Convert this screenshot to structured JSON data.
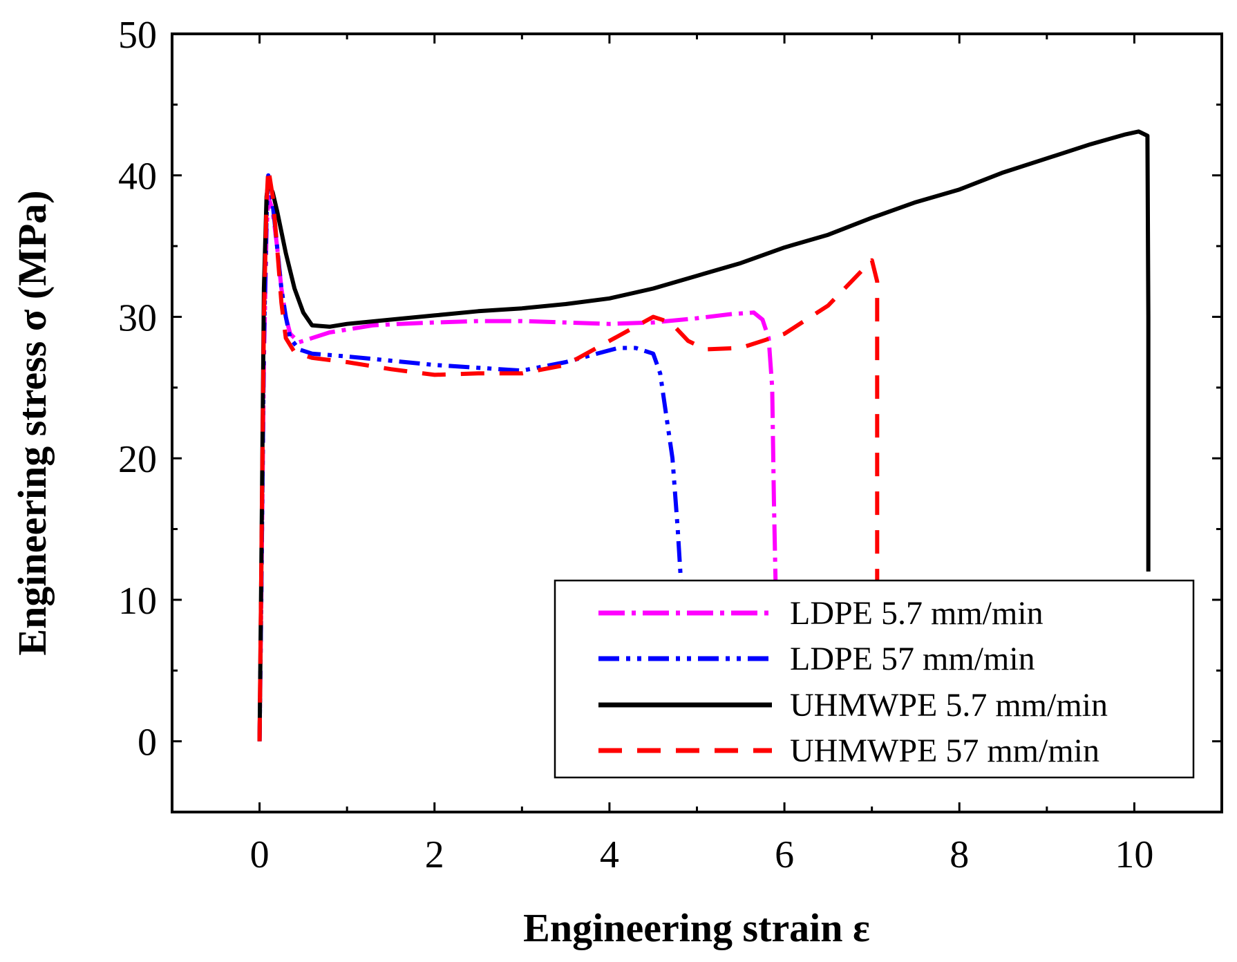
{
  "chart_data": {
    "type": "line",
    "title": "",
    "xlabel": "Engineering strain ε",
    "ylabel": "Engineering stress σ (MPa)",
    "xlim": [
      -1,
      11
    ],
    "ylim": [
      -5,
      50
    ],
    "x_ticks": [
      0,
      2,
      4,
      6,
      8,
      10
    ],
    "y_ticks": [
      0,
      10,
      20,
      30,
      40,
      50
    ],
    "x_tick_labels": [
      "0",
      "2",
      "4",
      "6",
      "8",
      "10"
    ],
    "y_tick_labels": [
      "0",
      "10",
      "20",
      "30",
      "40",
      "50"
    ],
    "grid": false,
    "legend_position": "bottom-right",
    "series": [
      {
        "name": "LDPE 5.7 mm/min",
        "color": "#ff00ff",
        "dash": "dash-dot",
        "points": [
          [
            0,
            0
          ],
          [
            0.02,
            10
          ],
          [
            0.05,
            27
          ],
          [
            0.08,
            36
          ],
          [
            0.1,
            38.5
          ],
          [
            0.15,
            37.5
          ],
          [
            0.2,
            35
          ],
          [
            0.25,
            32
          ],
          [
            0.3,
            30
          ],
          [
            0.35,
            28.8
          ],
          [
            0.45,
            28.2
          ],
          [
            0.6,
            28.5
          ],
          [
            0.8,
            28.9
          ],
          [
            1,
            29.1
          ],
          [
            1.3,
            29.4
          ],
          [
            1.6,
            29.5
          ],
          [
            2,
            29.6
          ],
          [
            2.5,
            29.7
          ],
          [
            3,
            29.7
          ],
          [
            3.5,
            29.6
          ],
          [
            4,
            29.5
          ],
          [
            4.5,
            29.6
          ],
          [
            5,
            29.9
          ],
          [
            5.4,
            30.2
          ],
          [
            5.65,
            30.3
          ],
          [
            5.75,
            29.8
          ],
          [
            5.82,
            28.5
          ],
          [
            5.86,
            25
          ],
          [
            5.88,
            17
          ],
          [
            5.9,
            11
          ]
        ]
      },
      {
        "name": "LDPE 57 mm/min",
        "color": "#0000ff",
        "dash": "dash-dot-dot",
        "points": [
          [
            0,
            0
          ],
          [
            0.02,
            10
          ],
          [
            0.05,
            28
          ],
          [
            0.08,
            37
          ],
          [
            0.1,
            40
          ],
          [
            0.15,
            38
          ],
          [
            0.2,
            35
          ],
          [
            0.25,
            32
          ],
          [
            0.3,
            30
          ],
          [
            0.35,
            28.5
          ],
          [
            0.45,
            27.7
          ],
          [
            0.6,
            27.4
          ],
          [
            1,
            27.2
          ],
          [
            1.5,
            26.9
          ],
          [
            2,
            26.6
          ],
          [
            2.5,
            26.4
          ],
          [
            3,
            26.2
          ],
          [
            3.5,
            26.8
          ],
          [
            3.8,
            27.3
          ],
          [
            4.1,
            27.8
          ],
          [
            4.3,
            27.8
          ],
          [
            4.5,
            27.4
          ],
          [
            4.58,
            26
          ],
          [
            4.65,
            23
          ],
          [
            4.72,
            20
          ],
          [
            4.78,
            15
          ],
          [
            4.82,
            11
          ]
        ]
      },
      {
        "name": "UHMWPE 5.7 mm/min",
        "color": "#000000",
        "dash": "solid",
        "points": [
          [
            0,
            0
          ],
          [
            0.02,
            12
          ],
          [
            0.05,
            32
          ],
          [
            0.08,
            38.5
          ],
          [
            0.1,
            39.5
          ],
          [
            0.15,
            38.8
          ],
          [
            0.2,
            37.5
          ],
          [
            0.3,
            34.5
          ],
          [
            0.4,
            32
          ],
          [
            0.5,
            30.3
          ],
          [
            0.6,
            29.4
          ],
          [
            0.8,
            29.3
          ],
          [
            1,
            29.5
          ],
          [
            1.5,
            29.8
          ],
          [
            2,
            30.1
          ],
          [
            2.5,
            30.4
          ],
          [
            3,
            30.6
          ],
          [
            3.5,
            30.9
          ],
          [
            4,
            31.3
          ],
          [
            4.5,
            32
          ],
          [
            5,
            32.9
          ],
          [
            5.5,
            33.8
          ],
          [
            6,
            34.9
          ],
          [
            6.5,
            35.8
          ],
          [
            7,
            37
          ],
          [
            7.5,
            38.1
          ],
          [
            8,
            39
          ],
          [
            8.5,
            40.2
          ],
          [
            9,
            41.2
          ],
          [
            9.5,
            42.2
          ],
          [
            9.9,
            42.9
          ],
          [
            10.05,
            43.1
          ],
          [
            10.15,
            42.8
          ],
          [
            10.16,
            30
          ],
          [
            10.16,
            12
          ]
        ]
      },
      {
        "name": "UHMWPE 57 mm/min",
        "color": "#ff0000",
        "dash": "dashed",
        "points": [
          [
            0,
            0
          ],
          [
            0.02,
            12
          ],
          [
            0.05,
            30
          ],
          [
            0.08,
            38
          ],
          [
            0.1,
            40.5
          ],
          [
            0.15,
            38.5
          ],
          [
            0.2,
            35
          ],
          [
            0.25,
            31
          ],
          [
            0.3,
            28.5
          ],
          [
            0.4,
            27.5
          ],
          [
            0.6,
            27.1
          ],
          [
            1,
            26.8
          ],
          [
            1.5,
            26.3
          ],
          [
            2,
            25.9
          ],
          [
            2.5,
            26
          ],
          [
            3,
            26
          ],
          [
            3.5,
            26.6
          ],
          [
            4,
            28.3
          ],
          [
            4.5,
            30
          ],
          [
            4.7,
            29.6
          ],
          [
            4.9,
            28.3
          ],
          [
            5.1,
            27.7
          ],
          [
            5.5,
            27.8
          ],
          [
            6,
            28.8
          ],
          [
            6.5,
            30.8
          ],
          [
            7,
            34
          ],
          [
            7.06,
            32.5
          ],
          [
            7.06,
            25
          ],
          [
            7.06,
            11
          ]
        ]
      }
    ]
  }
}
